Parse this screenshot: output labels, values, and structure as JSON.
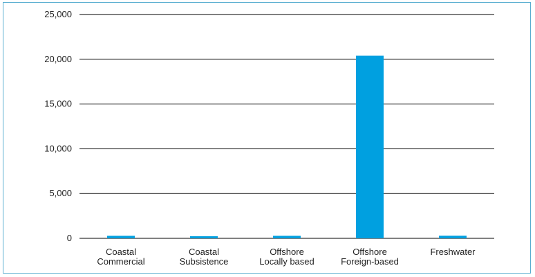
{
  "chart_data": {
    "type": "bar",
    "categories": [
      [
        "Coastal",
        "Commercial"
      ],
      [
        "Coastal",
        "Subsistence"
      ],
      [
        "Offshore",
        "Locally based"
      ],
      [
        "Offshore",
        "Foreign-based"
      ],
      [
        "Freshwater"
      ]
    ],
    "values": [
      280,
      230,
      280,
      20400,
      290
    ],
    "ylim": [
      0,
      25000
    ],
    "yticks": [
      0,
      5000,
      10000,
      15000,
      20000,
      25000
    ],
    "ytick_labels": [
      "0",
      "5,000",
      "10,000",
      "15,000",
      "20,000",
      "25,000"
    ],
    "grid": true,
    "bar_color": "#00a0e0",
    "gridline_color": "#000000",
    "frame_color": "#5aaed0"
  }
}
